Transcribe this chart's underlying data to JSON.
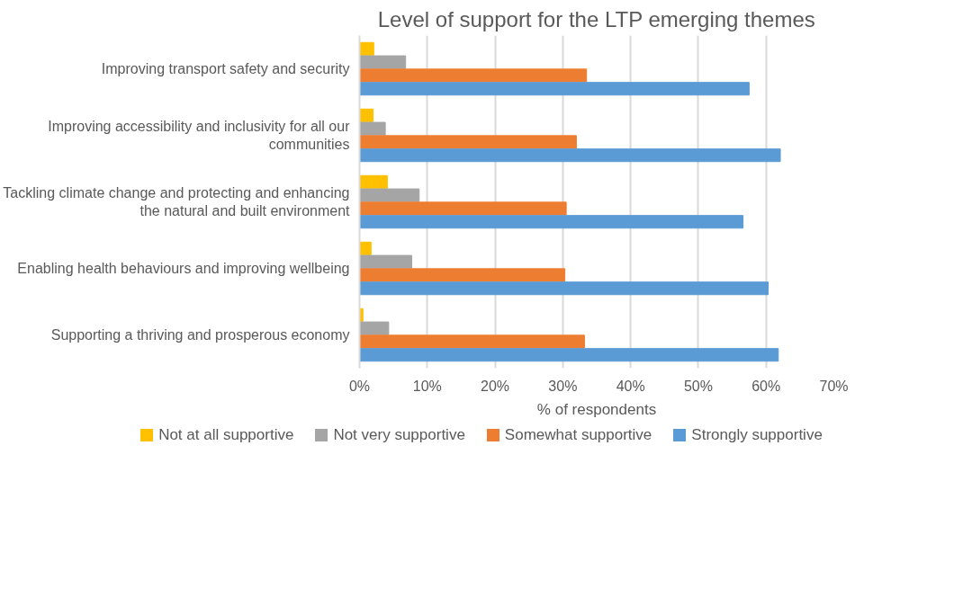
{
  "chart_data": {
    "type": "bar",
    "orientation": "horizontal",
    "title": "Level of support for the LTP emerging themes",
    "xlabel": "% of respondents",
    "categories": [
      "Improving transport safety and security",
      "Improving accessibility and inclusivity for all our communities",
      "Tackling climate change and protecting and enhancing the natural and built environment",
      "Enabling health behaviours and improving wellbeing",
      "Supporting a thriving and prosperous economy"
    ],
    "series": [
      {
        "name": "Not at all supportive",
        "color": "#ffc000",
        "values": [
          2.1,
          2.0,
          4.1,
          1.7,
          0.5
        ]
      },
      {
        "name": "Not very supportive",
        "color": "#a5a5a5",
        "values": [
          6.8,
          3.8,
          8.8,
          7.7,
          4.3
        ]
      },
      {
        "name": "Somewhat supportive",
        "color": "#ed7d31",
        "values": [
          33.5,
          32.0,
          30.5,
          30.3,
          33.2
        ]
      },
      {
        "name": "Strongly supportive",
        "color": "#5b9bd5",
        "values": [
          57.5,
          62.1,
          56.6,
          60.3,
          61.8
        ]
      }
    ],
    "xlim": [
      0,
      70
    ],
    "xticks": [
      {
        "value": 0,
        "label": "0%"
      },
      {
        "value": 10,
        "label": "10%"
      },
      {
        "value": 20,
        "label": "20%"
      },
      {
        "value": 30,
        "label": "30%"
      },
      {
        "value": 40,
        "label": "40%"
      },
      {
        "value": 50,
        "label": "50%"
      },
      {
        "value": 60,
        "label": "60%"
      },
      {
        "value": 70,
        "label": "70%"
      }
    ],
    "grid": "x",
    "legend": "bottom"
  }
}
